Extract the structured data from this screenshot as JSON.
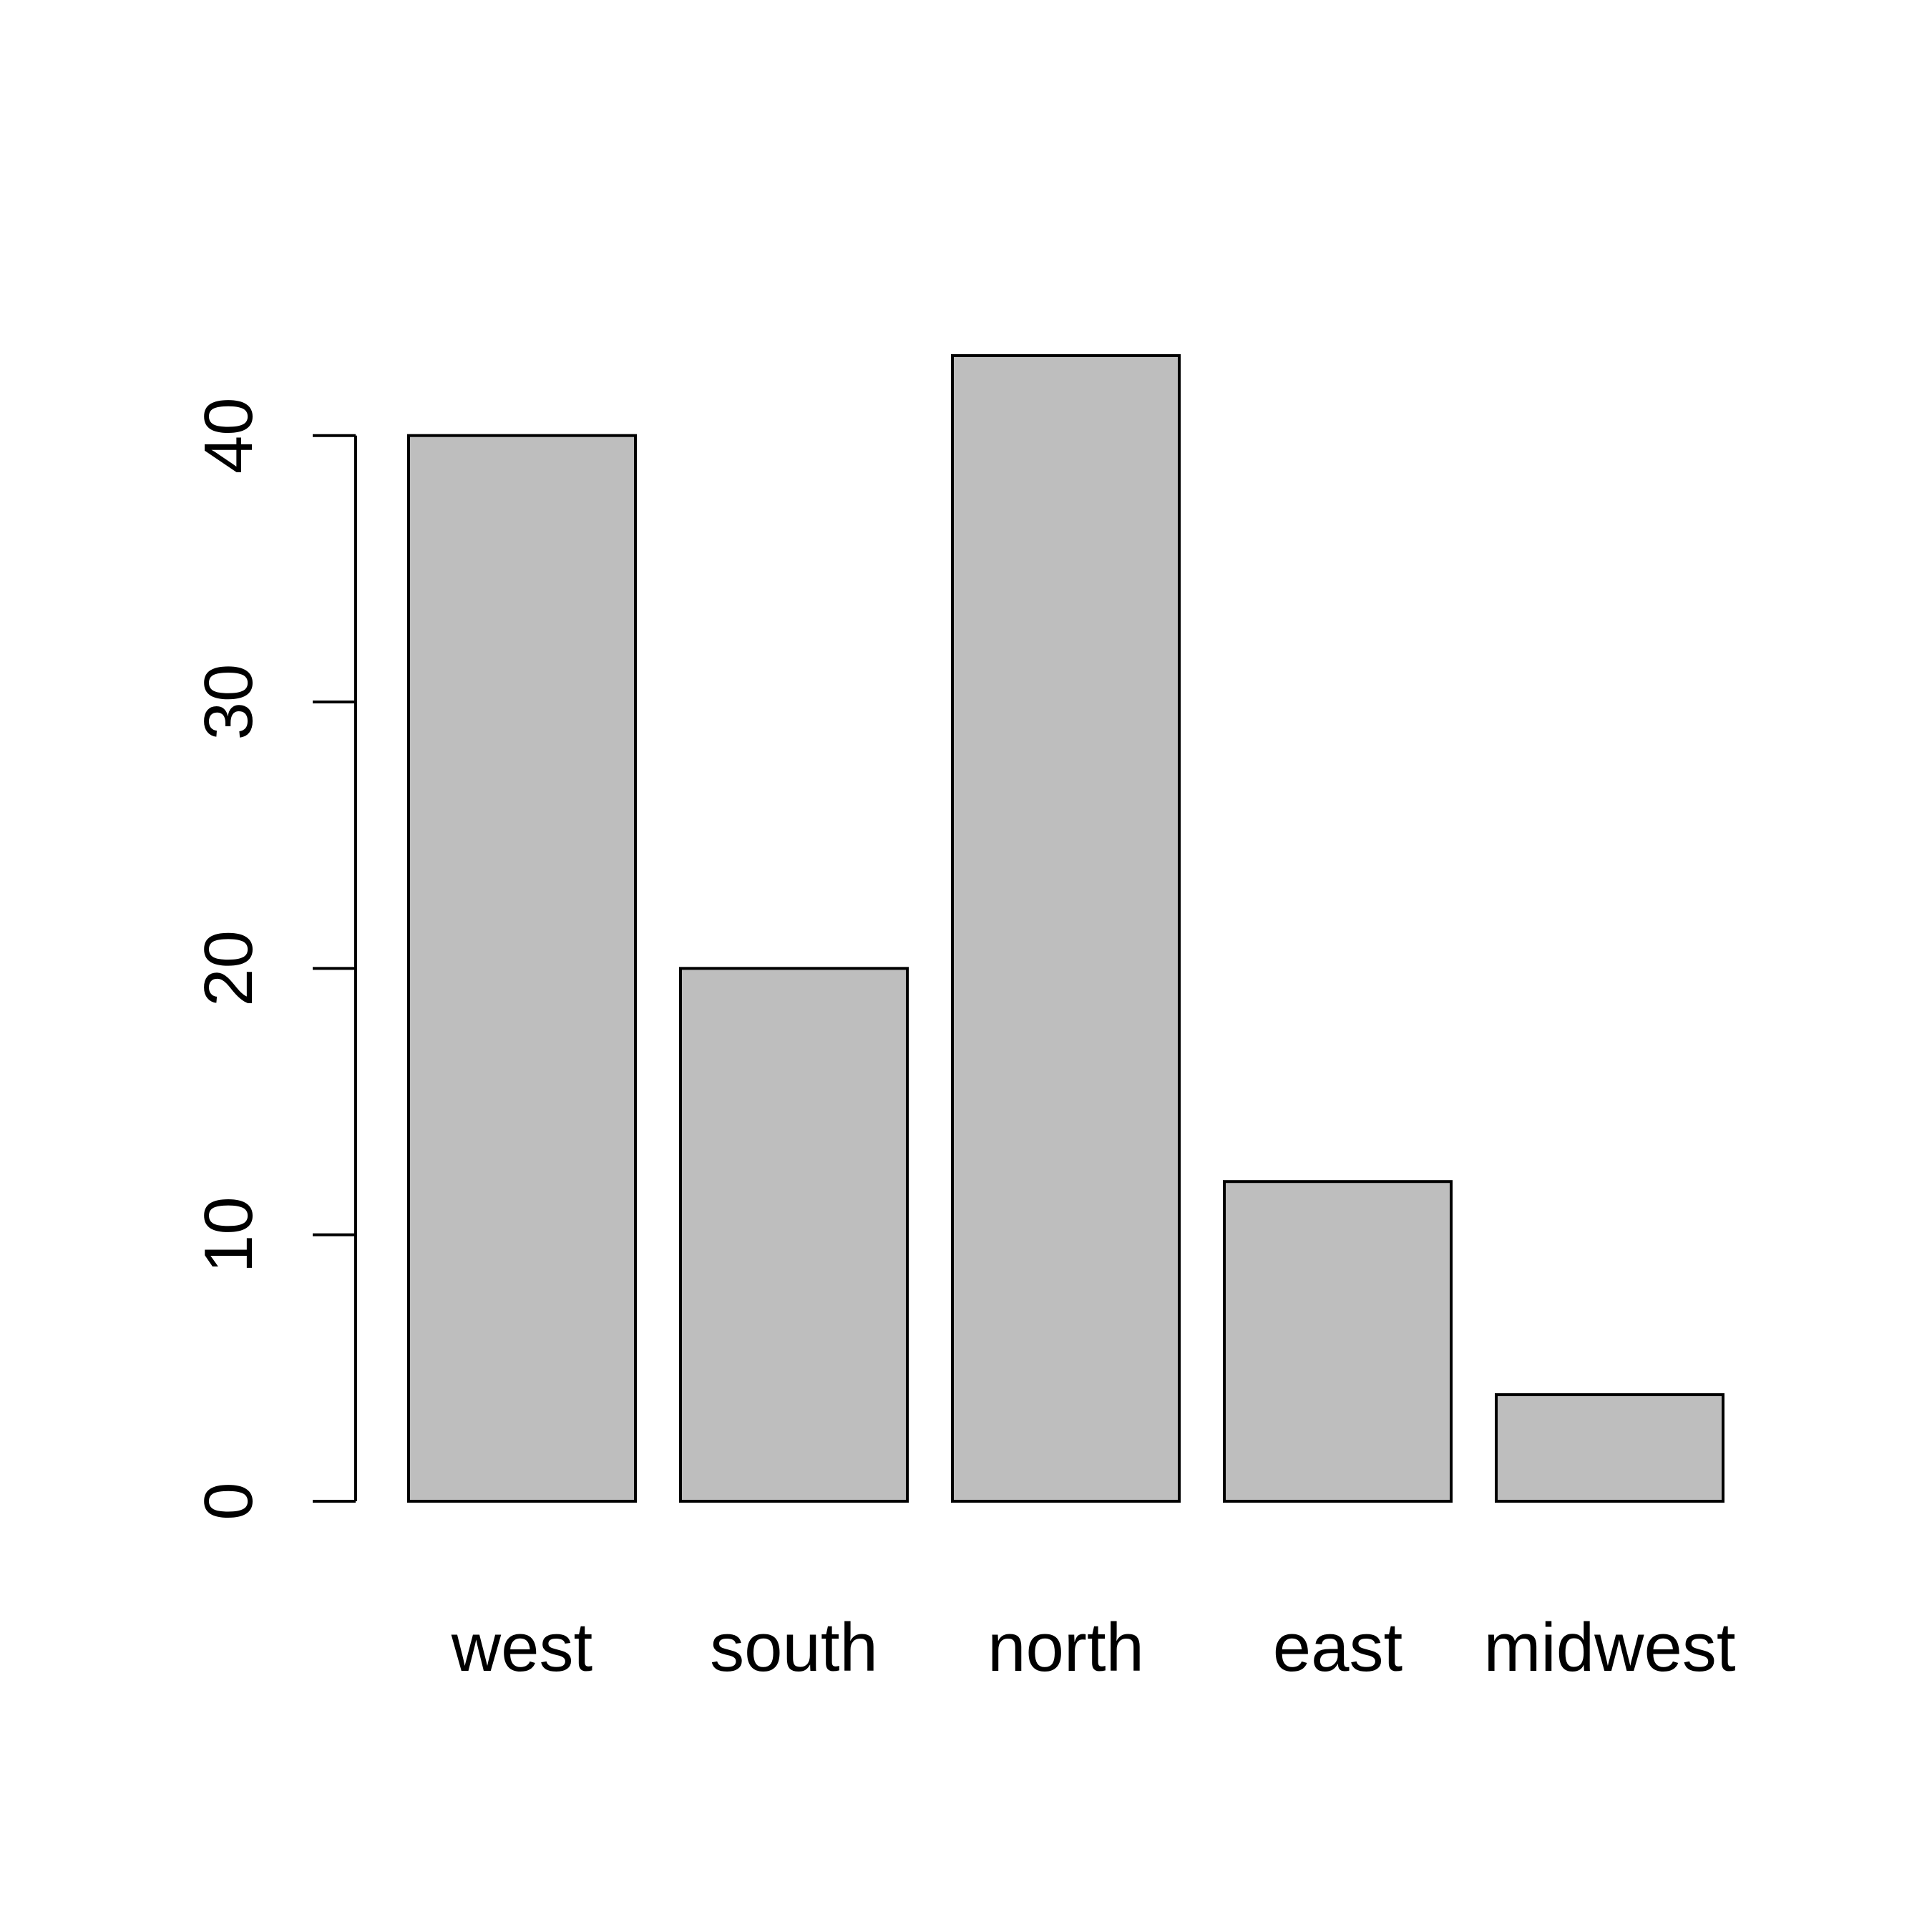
{
  "chart_data": {
    "type": "bar",
    "title": "",
    "xlabel": "",
    "ylabel": "",
    "categories": [
      "west",
      "south",
      "north",
      "east",
      "midwest"
    ],
    "values": [
      40,
      20,
      43,
      12,
      4
    ],
    "ylim": [
      0,
      43
    ],
    "yticks": [
      0,
      10,
      20,
      30,
      40
    ],
    "grid": false,
    "legend": "none",
    "colors": {
      "bar_fill": "#bebebe",
      "bar_stroke": "#000000",
      "axis": "#000000",
      "background": "#ffffff"
    }
  }
}
